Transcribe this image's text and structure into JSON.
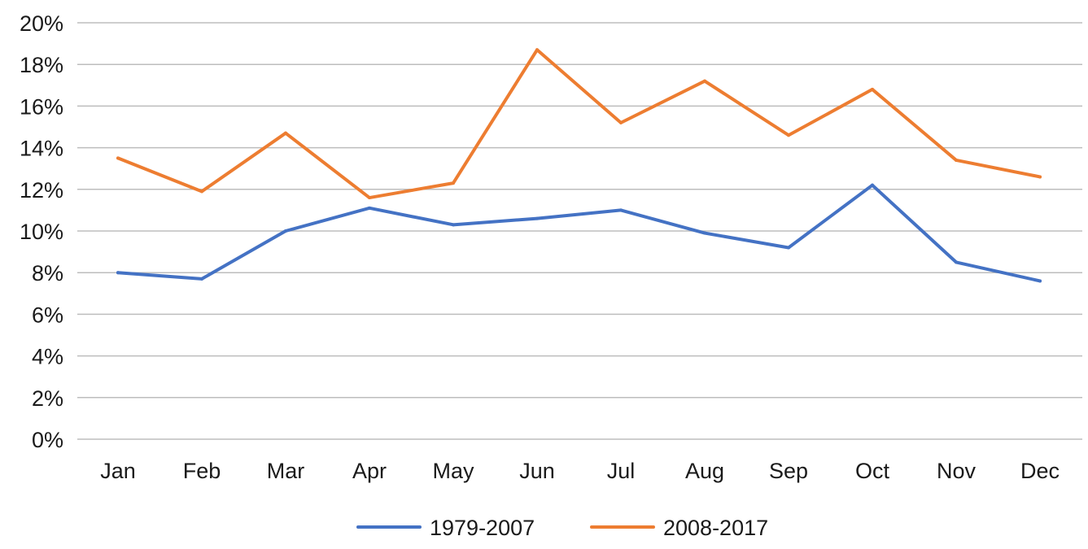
{
  "chart_data": {
    "type": "line",
    "categories": [
      "Jan",
      "Feb",
      "Mar",
      "Apr",
      "May",
      "Jun",
      "Jul",
      "Aug",
      "Sep",
      "Oct",
      "Nov",
      "Dec"
    ],
    "series": [
      {
        "name": "1979-2007",
        "color": "#4472c4",
        "values": [
          8.0,
          7.7,
          10.0,
          11.1,
          10.3,
          10.6,
          11.0,
          9.9,
          9.2,
          12.2,
          8.5,
          7.6
        ]
      },
      {
        "name": "2008-2017",
        "color": "#ed7d31",
        "values": [
          13.5,
          11.9,
          14.7,
          11.6,
          12.3,
          18.7,
          15.2,
          17.2,
          14.6,
          16.8,
          13.4,
          12.6
        ]
      }
    ],
    "y_ticks": [
      "0%",
      "2%",
      "4%",
      "6%",
      "8%",
      "10%",
      "12%",
      "14%",
      "16%",
      "18%",
      "20%"
    ],
    "ylim": [
      0,
      20
    ],
    "y_unit": "%",
    "title": "",
    "xlabel": "",
    "ylabel": "",
    "grid": "horizontal",
    "legend_position": "bottom"
  }
}
